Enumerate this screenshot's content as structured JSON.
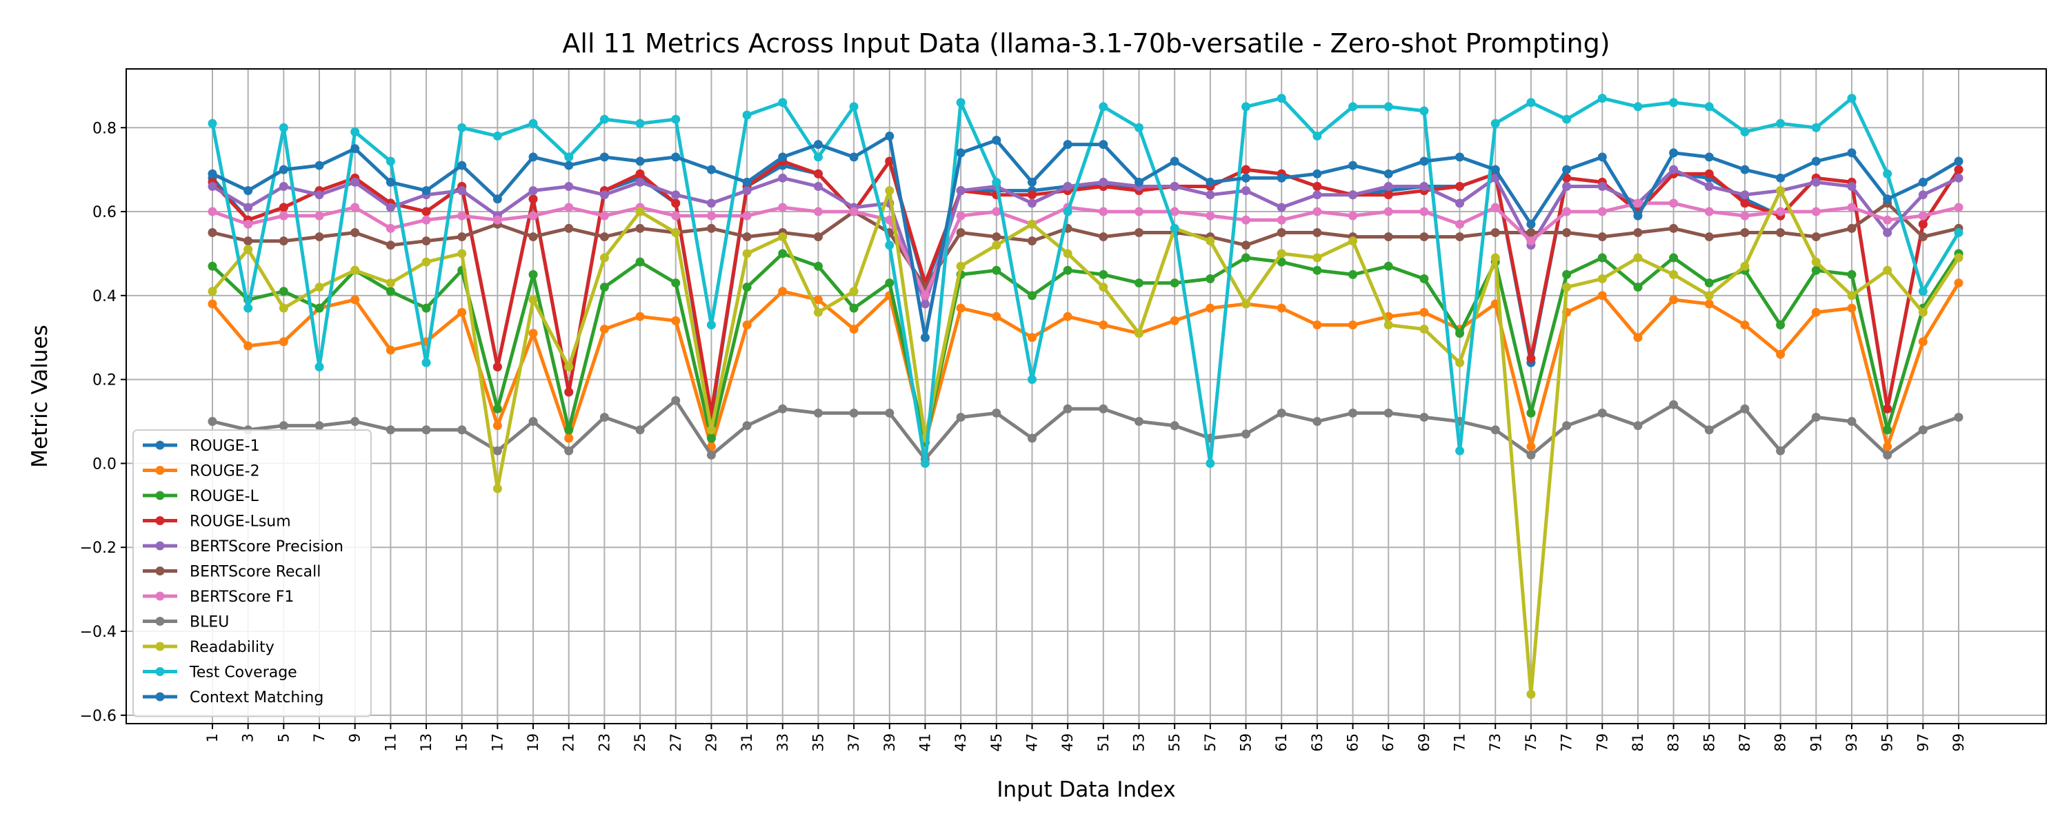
{
  "chart_data": {
    "type": "line",
    "title": "All 11 Metrics Across Input Data (llama-3.1-70b-versatile - Zero-shot Prompting)",
    "xlabel": "Input Data Index",
    "ylabel": "Metric Values",
    "ylim": [
      -0.62,
      0.94
    ],
    "yticks": [
      -0.6,
      -0.4,
      -0.2,
      0.0,
      0.2,
      0.4,
      0.6,
      0.8
    ],
    "ytick_labels": [
      "−0.6",
      "−0.4",
      "−0.2",
      "0.0",
      "0.2",
      "0.4",
      "0.6",
      "0.8"
    ],
    "grid": true,
    "legend_position": "lower-left",
    "x": [
      1,
      3,
      5,
      7,
      9,
      11,
      13,
      15,
      17,
      19,
      21,
      23,
      25,
      27,
      29,
      31,
      33,
      35,
      37,
      39,
      41,
      43,
      45,
      47,
      49,
      51,
      53,
      55,
      57,
      59,
      61,
      63,
      65,
      67,
      69,
      71,
      73,
      75,
      77,
      79,
      81,
      83,
      85,
      87,
      89,
      91,
      93,
      95,
      97,
      99
    ],
    "x_tick_labels": [
      "1",
      "3",
      "5",
      "7",
      "9",
      "11",
      "13",
      "15",
      "17",
      "19",
      "21",
      "23",
      "25",
      "27",
      "29",
      "31",
      "33",
      "35",
      "37",
      "39",
      "41",
      "43",
      "45",
      "47",
      "49",
      "51",
      "53",
      "55",
      "57",
      "59",
      "61",
      "63",
      "65",
      "67",
      "69",
      "71",
      "73",
      "75",
      "77",
      "79",
      "81",
      "83",
      "85",
      "87",
      "89",
      "91",
      "93",
      "95",
      "97",
      "99"
    ],
    "series": [
      {
        "name": "ROUGE-1",
        "color": "#1f77b4",
        "values": [
          0.68,
          0.58,
          0.61,
          0.65,
          0.68,
          0.62,
          0.6,
          0.66,
          0.23,
          0.63,
          0.17,
          0.65,
          0.68,
          0.62,
          0.11,
          0.66,
          0.71,
          0.69,
          0.6,
          0.72,
          0.42,
          0.65,
          0.65,
          0.65,
          0.66,
          0.66,
          0.66,
          0.66,
          0.66,
          0.7,
          0.69,
          0.66,
          0.64,
          0.65,
          0.66,
          0.66,
          0.69,
          0.24,
          0.68,
          0.67,
          0.6,
          0.69,
          0.68,
          0.63,
          0.59,
          0.68,
          0.67,
          0.13,
          0.57,
          0.7
        ]
      },
      {
        "name": "ROUGE-2",
        "color": "#ff7f0e",
        "values": [
          0.38,
          0.28,
          0.29,
          0.37,
          0.39,
          0.27,
          0.29,
          0.36,
          0.09,
          0.31,
          0.06,
          0.32,
          0.35,
          0.34,
          0.04,
          0.33,
          0.41,
          0.39,
          0.32,
          0.4,
          0.05,
          0.37,
          0.35,
          0.3,
          0.35,
          0.33,
          0.31,
          0.34,
          0.37,
          0.38,
          0.37,
          0.33,
          0.33,
          0.35,
          0.36,
          0.32,
          0.38,
          0.04,
          0.36,
          0.4,
          0.3,
          0.39,
          0.38,
          0.33,
          0.26,
          0.36,
          0.37,
          0.04,
          0.29,
          0.43
        ]
      },
      {
        "name": "ROUGE-L",
        "color": "#2ca02c",
        "values": [
          0.47,
          0.39,
          0.41,
          0.37,
          0.46,
          0.41,
          0.37,
          0.46,
          0.13,
          0.45,
          0.08,
          0.42,
          0.48,
          0.43,
          0.06,
          0.42,
          0.5,
          0.47,
          0.37,
          0.43,
          0.05,
          0.45,
          0.46,
          0.4,
          0.46,
          0.45,
          0.43,
          0.43,
          0.44,
          0.49,
          0.48,
          0.46,
          0.45,
          0.47,
          0.44,
          0.31,
          0.48,
          0.12,
          0.45,
          0.49,
          0.42,
          0.49,
          0.43,
          0.46,
          0.33,
          0.46,
          0.45,
          0.08,
          0.37,
          0.5
        ]
      },
      {
        "name": "ROUGE-Lsum",
        "color": "#d62728",
        "values": [
          0.67,
          0.58,
          0.61,
          0.65,
          0.68,
          0.62,
          0.6,
          0.66,
          0.23,
          0.63,
          0.17,
          0.65,
          0.69,
          0.62,
          0.12,
          0.66,
          0.72,
          0.69,
          0.6,
          0.72,
          0.43,
          0.65,
          0.64,
          0.64,
          0.65,
          0.66,
          0.65,
          0.66,
          0.66,
          0.7,
          0.69,
          0.66,
          0.64,
          0.64,
          0.65,
          0.66,
          0.69,
          0.25,
          0.68,
          0.67,
          0.6,
          0.69,
          0.69,
          0.62,
          0.59,
          0.68,
          0.67,
          0.13,
          0.57,
          0.7
        ]
      },
      {
        "name": "BERTScore Precision",
        "color": "#9467bd",
        "values": [
          0.66,
          0.61,
          0.66,
          0.64,
          0.67,
          0.61,
          0.64,
          0.65,
          0.59,
          0.65,
          0.66,
          0.64,
          0.67,
          0.64,
          0.62,
          0.65,
          0.68,
          0.66,
          0.61,
          0.62,
          0.38,
          0.65,
          0.66,
          0.62,
          0.66,
          0.67,
          0.66,
          0.66,
          0.64,
          0.65,
          0.61,
          0.64,
          0.64,
          0.66,
          0.66,
          0.62,
          0.68,
          0.52,
          0.66,
          0.66,
          0.62,
          0.7,
          0.66,
          0.64,
          0.65,
          0.67,
          0.66,
          0.55,
          0.64,
          0.68
        ]
      },
      {
        "name": "BERTScore Recall",
        "color": "#8c564b",
        "values": [
          0.55,
          0.53,
          0.53,
          0.54,
          0.55,
          0.52,
          0.53,
          0.54,
          0.57,
          0.54,
          0.56,
          0.54,
          0.56,
          0.55,
          0.56,
          0.54,
          0.55,
          0.54,
          0.6,
          0.55,
          0.42,
          0.55,
          0.54,
          0.53,
          0.56,
          0.54,
          0.55,
          0.55,
          0.54,
          0.52,
          0.55,
          0.55,
          0.54,
          0.54,
          0.54,
          0.54,
          0.55,
          0.55,
          0.55,
          0.54,
          0.55,
          0.56,
          0.54,
          0.55,
          0.55,
          0.54,
          0.56,
          0.62,
          0.54,
          0.56
        ]
      },
      {
        "name": "BERTScore F1",
        "color": "#e377c2",
        "values": [
          0.6,
          0.57,
          0.59,
          0.59,
          0.61,
          0.56,
          0.58,
          0.59,
          0.58,
          0.59,
          0.61,
          0.59,
          0.61,
          0.59,
          0.59,
          0.59,
          0.61,
          0.6,
          0.6,
          0.58,
          0.4,
          0.59,
          0.6,
          0.57,
          0.61,
          0.6,
          0.6,
          0.6,
          0.59,
          0.58,
          0.58,
          0.6,
          0.59,
          0.6,
          0.6,
          0.57,
          0.61,
          0.53,
          0.6,
          0.6,
          0.62,
          0.62,
          0.6,
          0.59,
          0.6,
          0.6,
          0.61,
          0.58,
          0.59,
          0.61
        ]
      },
      {
        "name": "BLEU",
        "color": "#7f7f7f",
        "values": [
          0.1,
          0.08,
          0.09,
          0.09,
          0.1,
          0.08,
          0.08,
          0.08,
          0.03,
          0.1,
          0.03,
          0.11,
          0.08,
          0.15,
          0.02,
          0.09,
          0.13,
          0.12,
          0.12,
          0.12,
          0.01,
          0.11,
          0.12,
          0.06,
          0.13,
          0.13,
          0.1,
          0.09,
          0.06,
          0.07,
          0.12,
          0.1,
          0.12,
          0.12,
          0.11,
          0.1,
          0.08,
          0.02,
          0.09,
          0.12,
          0.09,
          0.14,
          0.08,
          0.13,
          0.03,
          0.11,
          0.1,
          0.02,
          0.08,
          0.11
        ]
      },
      {
        "name": "Readability",
        "color": "#bcbd22",
        "values": [
          0.41,
          0.51,
          0.37,
          0.42,
          0.46,
          0.43,
          0.48,
          0.5,
          -0.06,
          0.39,
          0.23,
          0.49,
          0.6,
          0.55,
          0.08,
          0.5,
          0.54,
          0.36,
          0.41,
          0.65,
          0.06,
          0.47,
          0.52,
          0.57,
          0.5,
          0.42,
          0.31,
          0.56,
          0.53,
          0.38,
          0.5,
          0.49,
          0.53,
          0.33,
          0.32,
          0.24,
          0.49,
          -0.55,
          0.42,
          0.44,
          0.49,
          0.45,
          0.4,
          0.47,
          0.65,
          0.48,
          0.4,
          0.46,
          0.36,
          0.49
        ]
      },
      {
        "name": "Test Coverage",
        "color": "#17becf",
        "values": [
          0.81,
          0.37,
          0.8,
          0.23,
          0.79,
          0.72,
          0.24,
          0.8,
          0.78,
          0.81,
          0.73,
          0.82,
          0.81,
          0.82,
          0.33,
          0.83,
          0.86,
          0.73,
          0.85,
          0.52,
          0.0,
          0.86,
          0.67,
          0.2,
          0.6,
          0.85,
          0.8,
          0.56,
          0.0,
          0.85,
          0.87,
          0.78,
          0.85,
          0.85,
          0.84,
          0.03,
          0.81,
          0.86,
          0.82,
          0.87,
          0.85,
          0.86,
          0.85,
          0.79,
          0.81,
          0.8,
          0.87,
          0.69,
          0.41,
          0.55
        ]
      },
      {
        "name": "Context Matching",
        "color": "#1f77b4",
        "values": [
          0.69,
          0.65,
          0.7,
          0.71,
          0.75,
          0.67,
          0.65,
          0.71,
          0.63,
          0.73,
          0.71,
          0.73,
          0.72,
          0.73,
          0.7,
          0.67,
          0.73,
          0.76,
          0.73,
          0.78,
          0.3,
          0.74,
          0.77,
          0.67,
          0.76,
          0.76,
          0.67,
          0.72,
          0.67,
          0.68,
          0.68,
          0.69,
          0.71,
          0.69,
          0.72,
          0.73,
          0.7,
          0.57,
          0.7,
          0.73,
          0.59,
          0.74,
          0.73,
          0.7,
          0.68,
          0.72,
          0.74,
          0.63,
          0.67,
          0.72
        ]
      }
    ]
  }
}
